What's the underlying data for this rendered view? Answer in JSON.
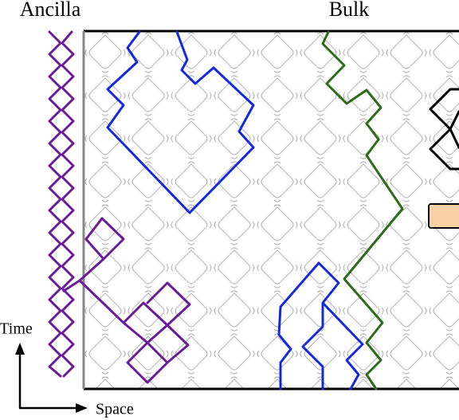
{
  "labels": {
    "ancilla": "Ancilla",
    "bulk": "Bulk",
    "time": "Time",
    "space": "Space"
  }
}
